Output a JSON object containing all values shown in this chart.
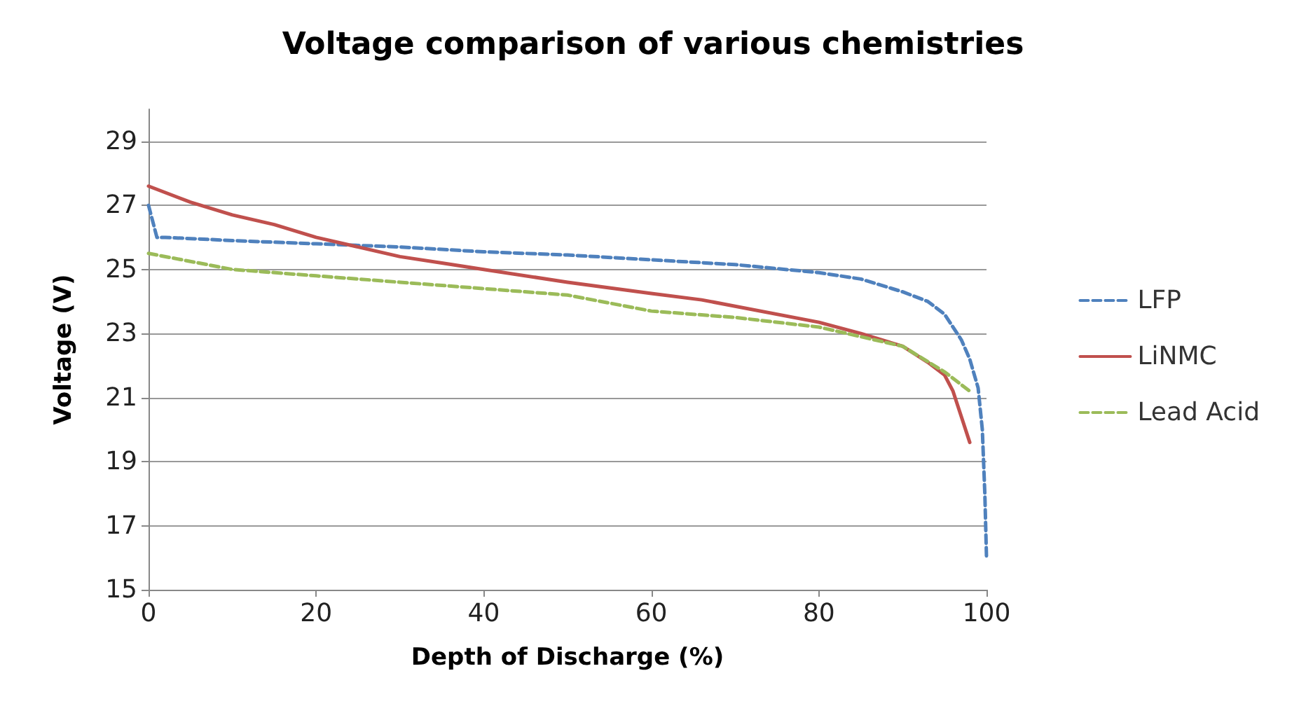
{
  "chart_data": {
    "type": "line",
    "title": "Voltage comparison of various chemistries",
    "xlabel": "Depth of Discharge (%)",
    "ylabel": "Voltage (V)",
    "xlim": [
      0,
      100
    ],
    "xticks": [
      0,
      20,
      40,
      60,
      80,
      100
    ],
    "ylim": [
      15,
      30
    ],
    "yticks": [
      15,
      17,
      19,
      21,
      23,
      25,
      27,
      29
    ],
    "grid": "y",
    "legend": "right",
    "marker": "none",
    "series": [
      {
        "name": "LFP",
        "color": "#4f81bd",
        "line_style": "dashed",
        "x": [
          0,
          1,
          2,
          10,
          20,
          30,
          40,
          50,
          60,
          70,
          80,
          85,
          90,
          93,
          95,
          97,
          98,
          99,
          99.5,
          99.8,
          100
        ],
        "values": [
          27.0,
          26.0,
          26.0,
          25.9,
          25.8,
          25.7,
          25.55,
          25.45,
          25.3,
          25.15,
          24.9,
          24.7,
          24.3,
          24.0,
          23.6,
          22.8,
          22.2,
          21.3,
          20.0,
          18.0,
          16.0
        ]
      },
      {
        "name": "LiNMC",
        "color": "#c0504d",
        "line_style": "solid",
        "x": [
          0,
          5,
          10,
          15,
          20,
          25,
          30,
          35,
          40,
          50,
          60,
          66,
          70,
          80,
          85,
          90,
          93,
          95,
          96,
          97,
          98
        ],
        "values": [
          27.6,
          27.1,
          26.7,
          26.4,
          26.0,
          25.7,
          25.4,
          25.2,
          25.0,
          24.6,
          24.25,
          24.05,
          23.85,
          23.35,
          23.0,
          22.6,
          22.1,
          21.7,
          21.2,
          20.4,
          19.6
        ]
      },
      {
        "name": "Lead Acid",
        "color": "#9bbb59",
        "line_style": "dashed",
        "x": [
          0,
          10,
          20,
          30,
          40,
          50,
          60,
          70,
          80,
          90,
          95,
          98
        ],
        "values": [
          25.5,
          25.0,
          24.8,
          24.6,
          24.4,
          24.2,
          23.7,
          23.5,
          23.2,
          22.6,
          21.8,
          21.2
        ]
      }
    ]
  }
}
